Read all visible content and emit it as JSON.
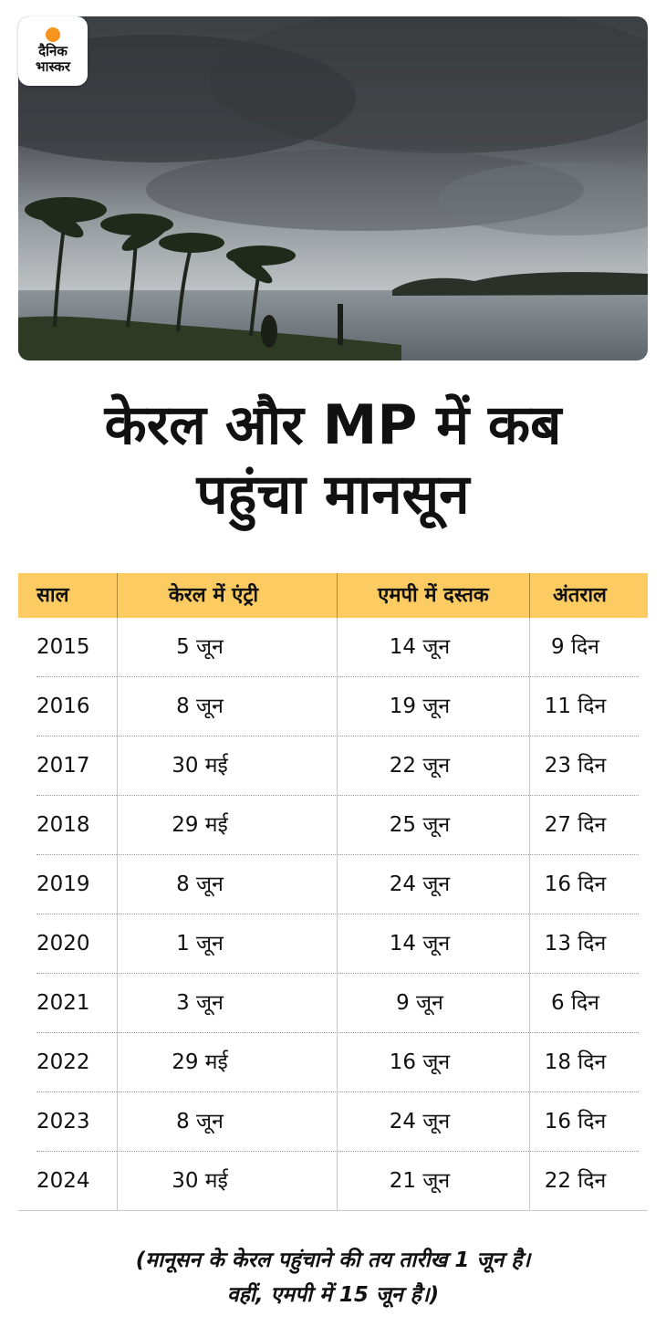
{
  "logo": {
    "line1": "दैनिक",
    "line2": "भास्कर",
    "accent": "#f7941d"
  },
  "title": {
    "line1": "केरल और MP में कब",
    "line2": "पहुंचा मानसून"
  },
  "table": {
    "header_color": "#fccc63",
    "columns": [
      "साल",
      "केरल में एंट्री",
      "एमपी में दस्तक",
      "अंतराल"
    ],
    "rows": [
      [
        "2015",
        "5 जून",
        "14 जून",
        "9 दिन"
      ],
      [
        "2016",
        "8 जून",
        "19 जून",
        "11 दिन"
      ],
      [
        "2017",
        "30 मई",
        "22 जून",
        "23 दिन"
      ],
      [
        "2018",
        "29 मई",
        "25 जून",
        "27 दिन"
      ],
      [
        "2019",
        "8 जून",
        "24 जून",
        "16 दिन"
      ],
      [
        "2020",
        "1 जून",
        "14 जून",
        "13 दिन"
      ],
      [
        "2021",
        "3 जून",
        "9 जून",
        "6 दिन"
      ],
      [
        "2022",
        "29 मई",
        "16 जून",
        "18 दिन"
      ],
      [
        "2023",
        "8 जून",
        "24 जून",
        "16 दिन"
      ],
      [
        "2024",
        "30 मई",
        "21 जून",
        "22 दिन"
      ]
    ]
  },
  "note": {
    "line1": "(मानूसन के केरल पहुंचाने की तय तारीख 1 जून है।",
    "line2": "वहीं, एमपी में 15 जून है।)"
  }
}
